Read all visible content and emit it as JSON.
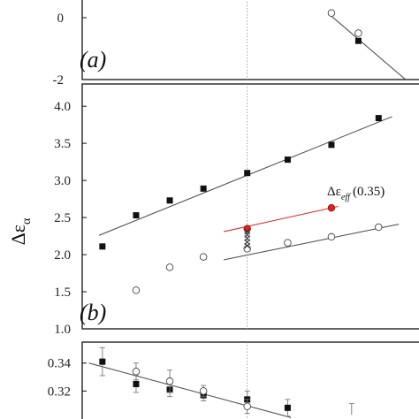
{
  "chart_data": [
    {
      "panel": "a",
      "type": "scatter",
      "panel_label": "(a)",
      "ylim": [
        -2,
        1.2
      ],
      "xlim": [
        0,
        1
      ],
      "y_tick_labels": [
        "0",
        "-2"
      ],
      "y_ticks": [
        0,
        -2
      ],
      "series": [
        {
          "marker": "filled-square",
          "x": [
            0.82
          ],
          "y": [
            -0.75
          ]
        },
        {
          "marker": "open-circle",
          "x": [
            0.82,
            0.74
          ],
          "y": [
            -0.5,
            0.15
          ]
        }
      ],
      "fits": [
        {
          "x": [
            0.74,
            0.96
          ],
          "y": [
            0.05,
            -2.0
          ],
          "color": "#444444"
        }
      ]
    },
    {
      "panel": "b",
      "type": "scatter",
      "panel_label": "(b)",
      "ylabel": "Δε",
      "ylabel_sub": "α",
      "ylim": [
        1.0,
        4.3
      ],
      "xlim": [
        0,
        1
      ],
      "y_tick_labels": [
        "4.0",
        "3.5",
        "3.0",
        "2.5",
        "2.0",
        "1.5",
        "1.0"
      ],
      "y_ticks": [
        4.0,
        3.5,
        3.0,
        2.5,
        2.0,
        1.5,
        1.0
      ],
      "annotation": "Δε",
      "annotation_sub": "eff",
      "annotation_suffix": "(0.35)",
      "series": [
        {
          "marker": "filled-square",
          "x": [
            0.06,
            0.16,
            0.26,
            0.36,
            0.49,
            0.61,
            0.74,
            0.88
          ],
          "y": [
            2.11,
            2.53,
            2.73,
            2.89,
            3.1,
            3.28,
            3.48,
            3.84
          ]
        },
        {
          "marker": "open-circle",
          "x": [
            0.16,
            0.26,
            0.36,
            0.49,
            0.61,
            0.74,
            0.88
          ],
          "y": [
            1.52,
            1.83,
            1.97,
            2.08,
            2.16,
            2.24,
            2.37
          ]
        },
        {
          "marker": "red-circle",
          "color": "#dd2222",
          "x": [
            0.49,
            0.74
          ],
          "y": [
            2.35,
            2.63
          ]
        },
        {
          "marker": "cross",
          "x": [
            0.49,
            0.49,
            0.49,
            0.49,
            0.49
          ],
          "y": [
            2.12,
            2.17,
            2.22,
            2.27,
            2.31
          ]
        }
      ],
      "fits": [
        {
          "x": [
            0.05,
            0.92
          ],
          "y": [
            2.26,
            3.86
          ],
          "color": "#444444"
        },
        {
          "x": [
            0.42,
            0.94
          ],
          "y": [
            1.93,
            2.41
          ],
          "color": "#444444"
        },
        {
          "x": [
            0.42,
            0.76
          ],
          "y": [
            2.31,
            2.65
          ],
          "color": "#dd2222"
        }
      ]
    },
    {
      "panel": "c",
      "type": "scatter",
      "ylim": [
        0.3,
        0.355
      ],
      "xlim": [
        0,
        1
      ],
      "y_tick_labels": [
        "0.34",
        "0.32"
      ],
      "y_ticks": [
        0.34,
        0.32
      ],
      "series": [
        {
          "marker": "filled-square",
          "x": [
            0.06,
            0.16,
            0.26,
            0.36,
            0.49,
            0.61
          ],
          "y": [
            0.341,
            0.325,
            0.321,
            0.317,
            0.314,
            0.308
          ],
          "err": [
            0.01,
            0.006,
            0.005,
            0.004,
            0.006,
            0.006
          ]
        },
        {
          "marker": "open-circle",
          "x": [
            0.16,
            0.26,
            0.36,
            0.49
          ],
          "y": [
            0.334,
            0.327,
            0.32,
            0.309
          ],
          "err": [
            0.006,
            0.008,
            0.004,
            0.005
          ]
        }
      ],
      "fits": [
        {
          "x": [
            0.02,
            0.62
          ],
          "y": [
            0.34,
            0.301
          ],
          "color": "#444444"
        }
      ],
      "extra_errorbar": {
        "x": 0.8,
        "y_low": 0.303,
        "y_high": 0.311
      }
    }
  ]
}
